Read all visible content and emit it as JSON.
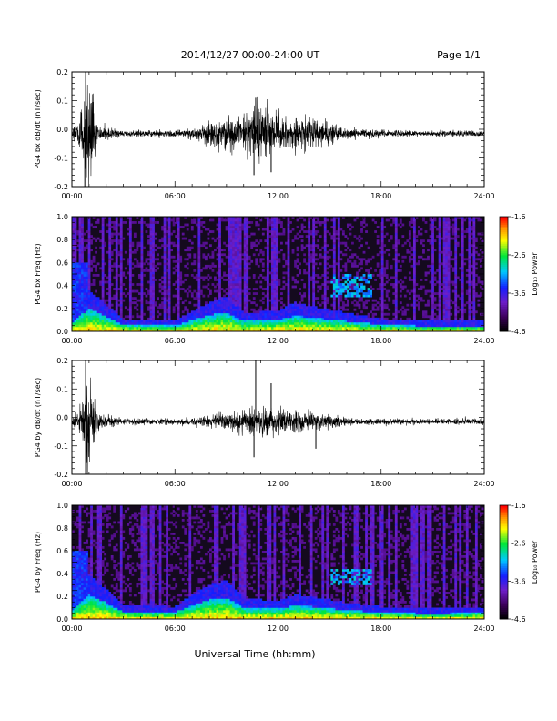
{
  "header": {
    "date_range": "2014/12/27  00:00-24:00 UT",
    "page": "Page 1/1"
  },
  "xlabel": "Universal Time (hh:mm)",
  "chart_data": [
    {
      "type": "line",
      "ylabel": "PG4 bx dB/dt (nT/sec)",
      "xlim": [
        0,
        24
      ],
      "ylim": [
        -0.2,
        0.2
      ],
      "x_ticks": [
        "00:00",
        "06:00",
        "12:00",
        "18:00",
        "24:00"
      ],
      "y_ticks": [
        "0.2",
        "0.1",
        "0.0",
        "-0.1",
        "-0.2"
      ],
      "y_tick_values": [
        0.2,
        0.1,
        0.0,
        -0.1,
        -0.2
      ],
      "envelope": {
        "hours": [
          0,
          0.5,
          0.8,
          1.0,
          1.5,
          3,
          6,
          7,
          8,
          9,
          10,
          10.5,
          11,
          11.5,
          12,
          13,
          14,
          15,
          16,
          17,
          18,
          20,
          22,
          23,
          24
        ],
        "amplitude": [
          0.01,
          0.06,
          0.2,
          0.18,
          0.03,
          0.012,
          0.012,
          0.02,
          0.04,
          0.06,
          0.07,
          0.08,
          0.11,
          0.08,
          0.07,
          0.06,
          0.06,
          0.04,
          0.02,
          0.015,
          0.012,
          0.01,
          0.01,
          0.012,
          0.01
        ]
      },
      "spikes": [
        {
          "hour": 0.8,
          "value": 0.2
        },
        {
          "hour": 0.8,
          "value": -0.2
        },
        {
          "hour": 10.6,
          "value": -0.16
        },
        {
          "hour": 10.7,
          "value": 0.11
        },
        {
          "hour": 11.6,
          "value": -0.15
        }
      ]
    },
    {
      "type": "heatmap",
      "ylabel": "PG4 bx Freq (Hz)",
      "colorbar_label": "Log₁₀ Power",
      "xlim": [
        0,
        24
      ],
      "ylim": [
        0,
        1.0
      ],
      "zlim": [
        -4.6,
        -1.6
      ],
      "x_ticks": [
        "00:00",
        "06:00",
        "12:00",
        "18:00",
        "24:00"
      ],
      "y_ticks": [
        "1.0",
        "0.8",
        "0.6",
        "0.4",
        "0.2",
        "0.0"
      ],
      "y_tick_values": [
        1.0,
        0.8,
        0.6,
        0.4,
        0.2,
        0.0
      ],
      "colorbar_ticks": [
        "-1.6",
        "-2.6",
        "-3.6",
        "-4.6"
      ],
      "colorbar_tick_values": [
        -1.6,
        -2.6,
        -3.6,
        -4.6
      ],
      "low_band_top_hz": {
        "hours": [
          0,
          1,
          3,
          6,
          7,
          8,
          9,
          10,
          12,
          13,
          14,
          16,
          18,
          20,
          22,
          24
        ],
        "freq": [
          0.08,
          0.2,
          0.06,
          0.05,
          0.1,
          0.14,
          0.17,
          0.09,
          0.1,
          0.14,
          0.12,
          0.09,
          0.06,
          0.05,
          0.05,
          0.05
        ]
      },
      "emission_region": {
        "hours": [
          15.0,
          17.5
        ],
        "freq": [
          0.3,
          0.5
        ]
      }
    },
    {
      "type": "line",
      "ylabel": "PG4 by dB/dt (nT/sec)",
      "xlim": [
        0,
        24
      ],
      "ylim": [
        -0.2,
        0.2
      ],
      "x_ticks": [
        "00:00",
        "06:00",
        "12:00",
        "18:00",
        "24:00"
      ],
      "y_ticks": [
        "0.2",
        "0.1",
        "0.0",
        "-0.1",
        "-0.2"
      ],
      "y_tick_values": [
        0.2,
        0.1,
        0.0,
        -0.1,
        -0.2
      ],
      "envelope": {
        "hours": [
          0,
          0.5,
          0.8,
          1.0,
          1.5,
          3,
          6,
          7,
          8,
          9,
          10,
          10.5,
          11,
          11.5,
          12,
          13,
          14,
          15,
          16,
          17,
          18,
          20,
          22,
          23,
          24
        ],
        "amplitude": [
          0.01,
          0.05,
          0.2,
          0.17,
          0.03,
          0.012,
          0.012,
          0.015,
          0.025,
          0.035,
          0.04,
          0.05,
          0.06,
          0.05,
          0.045,
          0.04,
          0.035,
          0.025,
          0.015,
          0.012,
          0.012,
          0.01,
          0.01,
          0.015,
          0.01
        ]
      },
      "spikes": [
        {
          "hour": 0.8,
          "value": 0.2
        },
        {
          "hour": 0.8,
          "value": -0.2
        },
        {
          "hour": 10.6,
          "value": -0.14
        },
        {
          "hour": 10.7,
          "value": 0.2
        },
        {
          "hour": 11.6,
          "value": 0.12
        },
        {
          "hour": 14.2,
          "value": -0.11
        }
      ]
    },
    {
      "type": "heatmap",
      "ylabel": "PG4 by Freq (Hz)",
      "colorbar_label": "Log₁₀ Power",
      "xlim": [
        0,
        24
      ],
      "ylim": [
        0,
        1.0
      ],
      "zlim": [
        -4.6,
        -1.6
      ],
      "x_ticks": [
        "00:00",
        "06:00",
        "12:00",
        "18:00",
        "24:00"
      ],
      "y_ticks": [
        "1.0",
        "0.8",
        "0.6",
        "0.4",
        "0.2",
        "0.0"
      ],
      "y_tick_values": [
        1.0,
        0.8,
        0.6,
        0.4,
        0.2,
        0.0
      ],
      "colorbar_ticks": [
        "-1.6",
        "-2.6",
        "-3.6",
        "-4.6"
      ],
      "colorbar_tick_values": [
        -1.6,
        -2.6,
        -3.6,
        -4.6
      ],
      "low_band_top_hz": {
        "hours": [
          0,
          1,
          3,
          6,
          7,
          8,
          9,
          10,
          12,
          13,
          14,
          16,
          18,
          20,
          22,
          24
        ],
        "freq": [
          0.08,
          0.22,
          0.07,
          0.06,
          0.12,
          0.17,
          0.19,
          0.1,
          0.09,
          0.12,
          0.11,
          0.08,
          0.06,
          0.05,
          0.05,
          0.06
        ]
      },
      "emission_region": {
        "hours": [
          15.0,
          17.5
        ],
        "freq": [
          0.3,
          0.45
        ]
      }
    }
  ]
}
